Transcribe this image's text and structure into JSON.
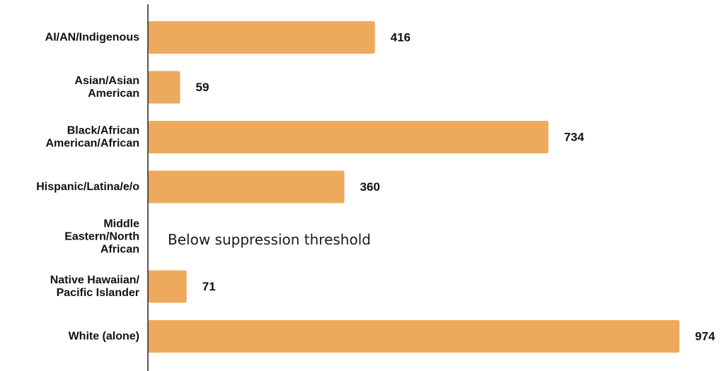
{
  "chart_data": {
    "type": "bar",
    "orientation": "horizontal",
    "title": "",
    "xlabel": "",
    "ylabel": "",
    "xlim": [
      0,
      974
    ],
    "grid": false,
    "legend": "none",
    "bar_color": "#EDAA5E",
    "axis_color": "#222222",
    "categories": [
      [
        "AI/AN/Indigenous"
      ],
      [
        "Asian/Asian",
        "American"
      ],
      [
        "Black/African",
        "American/African"
      ],
      [
        "Hispanic/Latina/e/o"
      ],
      [
        "Middle",
        "Eastern/North",
        "African"
      ],
      [
        "Native Hawaiian/",
        "Pacific Islander"
      ],
      [
        "White (alone)"
      ]
    ],
    "values": [
      416,
      59,
      734,
      360,
      null,
      71,
      974
    ],
    "value_labels": [
      "416",
      "59",
      "734",
      "360",
      "",
      "71",
      "974"
    ],
    "annotations": [
      {
        "category_index": 4,
        "text": "Below suppression threshold"
      }
    ]
  }
}
